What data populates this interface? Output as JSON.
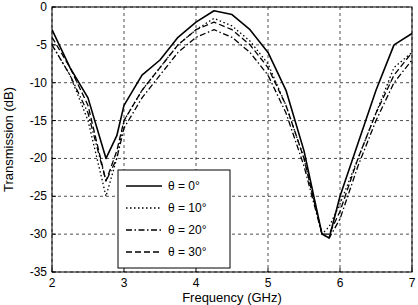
{
  "chart_data": {
    "type": "line",
    "x_label": "Frequency (GHz)",
    "y_label": "Transmission (dB)",
    "x": [
      2,
      2.25,
      2.5,
      2.75,
      2.9,
      3,
      3.25,
      3.5,
      3.75,
      4,
      4.25,
      4.5,
      4.75,
      5,
      5.25,
      5.5,
      5.75,
      5.85,
      6,
      6.25,
      6.5,
      6.75,
      7
    ],
    "series": [
      {
        "name": "θ = 0°",
        "color": "#000000",
        "line_style": "solid",
        "values": [
          -3,
          -8,
          -12,
          -20,
          -17,
          -13,
          -9,
          -7,
          -4,
          -2,
          -0.5,
          -1,
          -3,
          -6,
          -11,
          -19,
          -30,
          -30.5,
          -25,
          -18,
          -11,
          -5,
          -3.5
        ]
      },
      {
        "name": "θ = 10°",
        "color": "#000000",
        "line_style": "dotted",
        "values": [
          -5,
          -9,
          -15,
          -25,
          -20,
          -15,
          -11,
          -8,
          -5,
          -3,
          -1.5,
          -2.5,
          -4.5,
          -7.5,
          -13,
          -20,
          -30,
          -29,
          -26,
          -20,
          -14,
          -8,
          -6
        ]
      },
      {
        "name": "θ = 20°",
        "color": "#000000",
        "line_style": "dashdot",
        "values": [
          -5,
          -9,
          -14,
          -23,
          -20,
          -16,
          -12,
          -9,
          -6,
          -4,
          -3,
          -4,
          -6,
          -9,
          -14,
          -21,
          -30,
          -30.5,
          -28,
          -21,
          -15,
          -10,
          -7
        ]
      },
      {
        "name": "θ = 30°",
        "color": "#000000",
        "line_style": "dashed",
        "values": [
          -4,
          -8,
          -13,
          -23,
          -19,
          -15,
          -11,
          -8,
          -5,
          -3,
          -2,
          -3,
          -5,
          -8,
          -13,
          -20,
          -30,
          -30,
          -27,
          -20,
          -14,
          -9,
          -6
        ]
      }
    ],
    "xlim": [
      2,
      7
    ],
    "ylim": [
      -35,
      0
    ],
    "xticks": [
      2,
      3,
      4,
      5,
      6,
      7
    ],
    "yticks": [
      -35,
      -30,
      -25,
      -20,
      -15,
      -10,
      -5,
      0
    ],
    "grid": true,
    "legend": "lower left"
  }
}
